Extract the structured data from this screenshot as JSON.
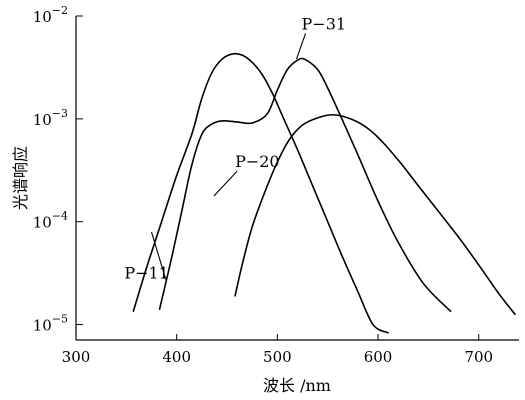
{
  "chart_data": {
    "type": "line",
    "title": "",
    "xlabel": "波长 /nm",
    "ylabel": "光谱响应",
    "xlim": [
      300,
      740
    ],
    "ylim_log": [
      -5.15,
      -2.0
    ],
    "y_scale": "log",
    "grid": false,
    "x_ticks": [
      {
        "value": 300,
        "label": "300"
      },
      {
        "value": 400,
        "label": "400"
      },
      {
        "value": 500,
        "label": "500"
      },
      {
        "value": 600,
        "label": "600"
      },
      {
        "value": 700,
        "label": "700"
      }
    ],
    "y_ticks": [
      {
        "exp": -2,
        "base": "10",
        "sup": "−2"
      },
      {
        "exp": -3,
        "base": "10",
        "sup": "−3"
      },
      {
        "exp": -4,
        "base": "10",
        "sup": "−4"
      },
      {
        "exp": -5,
        "base": "10",
        "sup": "−5"
      }
    ],
    "series": [
      {
        "name": "P−11",
        "label_at": [
          348,
          -4.55
        ],
        "leader_to": [
          375,
          -4.1
        ],
        "points": [
          [
            357,
            -4.87
          ],
          [
            370,
            -4.45
          ],
          [
            385,
            -4.0
          ],
          [
            400,
            -3.55
          ],
          [
            415,
            -3.15
          ],
          [
            425,
            -2.8
          ],
          [
            435,
            -2.55
          ],
          [
            445,
            -2.42
          ],
          [
            455,
            -2.37
          ],
          [
            465,
            -2.38
          ],
          [
            475,
            -2.45
          ],
          [
            485,
            -2.57
          ],
          [
            495,
            -2.75
          ],
          [
            505,
            -2.97
          ],
          [
            520,
            -3.3
          ],
          [
            535,
            -3.65
          ],
          [
            550,
            -4.0
          ],
          [
            565,
            -4.35
          ],
          [
            580,
            -4.68
          ],
          [
            595,
            -5.0
          ],
          [
            610,
            -5.08
          ]
        ]
      },
      {
        "name": "P−31",
        "label_at": [
          524,
          -2.13
        ],
        "leader_to": [
          519,
          -2.42
        ],
        "points": [
          [
            383,
            -4.85
          ],
          [
            395,
            -4.35
          ],
          [
            405,
            -3.9
          ],
          [
            415,
            -3.45
          ],
          [
            425,
            -3.15
          ],
          [
            435,
            -3.05
          ],
          [
            445,
            -3.02
          ],
          [
            460,
            -3.03
          ],
          [
            475,
            -3.04
          ],
          [
            490,
            -2.95
          ],
          [
            500,
            -2.72
          ],
          [
            510,
            -2.52
          ],
          [
            520,
            -2.43
          ],
          [
            527,
            -2.42
          ],
          [
            540,
            -2.52
          ],
          [
            550,
            -2.7
          ],
          [
            565,
            -3.02
          ],
          [
            580,
            -3.35
          ],
          [
            600,
            -3.8
          ],
          [
            620,
            -4.2
          ],
          [
            645,
            -4.6
          ],
          [
            672,
            -4.87
          ]
        ]
      },
      {
        "name": "P−20",
        "label_at": [
          458,
          -3.47
        ],
        "leader_to": [
          437,
          -3.75
        ],
        "points": [
          [
            458,
            -4.72
          ],
          [
            465,
            -4.42
          ],
          [
            475,
            -4.05
          ],
          [
            488,
            -3.7
          ],
          [
            500,
            -3.42
          ],
          [
            512,
            -3.2
          ],
          [
            525,
            -3.06
          ],
          [
            540,
            -2.99
          ],
          [
            555,
            -2.96
          ],
          [
            570,
            -2.99
          ],
          [
            585,
            -3.06
          ],
          [
            600,
            -3.18
          ],
          [
            620,
            -3.4
          ],
          [
            640,
            -3.65
          ],
          [
            660,
            -3.9
          ],
          [
            680,
            -4.15
          ],
          [
            700,
            -4.42
          ],
          [
            720,
            -4.7
          ],
          [
            736,
            -4.9
          ]
        ]
      }
    ]
  }
}
